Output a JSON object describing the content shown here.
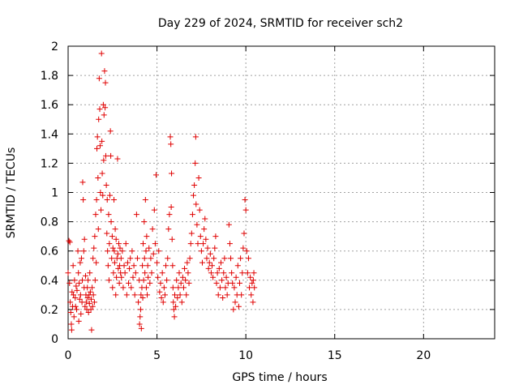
{
  "chart_data": {
    "type": "scatter",
    "title": "Day 229 of 2024, SRMTID for receiver sch2",
    "xlabel": "GPS time / hours",
    "ylabel": "SRMTID / TECUs",
    "xlim": [
      0,
      24
    ],
    "ylim": [
      0,
      2
    ],
    "x_ticks": [
      0,
      5,
      10,
      15,
      20
    ],
    "x_tick_labels": [
      "0",
      "5",
      "10",
      "15",
      "20"
    ],
    "y_ticks": [
      0,
      0.2,
      0.4,
      0.6,
      0.8,
      1,
      1.2,
      1.4,
      1.6,
      1.8,
      2
    ],
    "y_tick_labels": [
      "0",
      "0.2",
      "0.4",
      "0.6",
      "0.8",
      "1",
      "1.2",
      "1.4",
      "1.6",
      "1.8",
      "2"
    ],
    "grid": true,
    "marker": "+",
    "color": "#e00000",
    "series": [
      {
        "name": "SRMTID",
        "points": [
          [
            0.0,
            0.45
          ],
          [
            0.05,
            0.67
          ],
          [
            0.08,
            0.38
          ],
          [
            0.1,
            0.66
          ],
          [
            0.12,
            0.25
          ],
          [
            0.15,
            0.18
          ],
          [
            0.18,
            0.1
          ],
          [
            0.2,
            0.06
          ],
          [
            0.22,
            0.32
          ],
          [
            0.25,
            0.22
          ],
          [
            0.28,
            0.5
          ],
          [
            0.3,
            0.3
          ],
          [
            0.33,
            0.15
          ],
          [
            0.36,
            0.4
          ],
          [
            0.4,
            0.28
          ],
          [
            0.42,
            0.22
          ],
          [
            0.45,
            0.36
          ],
          [
            0.48,
            0.2
          ],
          [
            0.5,
            0.33
          ],
          [
            0.55,
            0.6
          ],
          [
            0.58,
            0.45
          ],
          [
            0.6,
            0.12
          ],
          [
            0.62,
            0.38
          ],
          [
            0.65,
            0.27
          ],
          [
            0.68,
            0.52
          ],
          [
            0.7,
            0.3
          ],
          [
            0.72,
            0.17
          ],
          [
            0.75,
            0.55
          ],
          [
            0.78,
            0.25
          ],
          [
            0.8,
            0.4
          ],
          [
            0.82,
            1.07
          ],
          [
            0.85,
            0.95
          ],
          [
            0.88,
            0.6
          ],
          [
            0.9,
            0.35
          ],
          [
            0.92,
            0.68
          ],
          [
            0.95,
            0.22
          ],
          [
            0.98,
            0.43
          ],
          [
            1.0,
            0.3
          ],
          [
            1.02,
            0.25
          ],
          [
            1.05,
            0.2
          ],
          [
            1.08,
            0.35
          ],
          [
            1.1,
            0.28
          ],
          [
            1.12,
            0.4
          ],
          [
            1.15,
            0.18
          ],
          [
            1.18,
            0.3
          ],
          [
            1.2,
            0.24
          ],
          [
            1.22,
            0.45
          ],
          [
            1.25,
            0.32
          ],
          [
            1.28,
            0.2
          ],
          [
            1.3,
            0.27
          ],
          [
            1.32,
            0.06
          ],
          [
            1.35,
            0.35
          ],
          [
            1.38,
            0.22
          ],
          [
            1.4,
            0.55
          ],
          [
            1.42,
            0.3
          ],
          [
            1.45,
            0.62
          ],
          [
            1.48,
            0.25
          ],
          [
            1.5,
            0.7
          ],
          [
            1.52,
            0.4
          ],
          [
            1.55,
            0.85
          ],
          [
            1.58,
            0.52
          ],
          [
            1.6,
            0.95
          ],
          [
            1.62,
            1.3
          ],
          [
            1.65,
            1.38
          ],
          [
            1.68,
            1.1
          ],
          [
            1.7,
            0.75
          ],
          [
            1.72,
            1.5
          ],
          [
            1.75,
            1.78
          ],
          [
            1.78,
            1.57
          ],
          [
            1.8,
            1.32
          ],
          [
            1.82,
            1.0
          ],
          [
            1.85,
            0.88
          ],
          [
            1.88,
            1.95
          ],
          [
            1.9,
            1.35
          ],
          [
            1.92,
            1.13
          ],
          [
            1.95,
            0.98
          ],
          [
            1.98,
            1.6
          ],
          [
            2.0,
            1.22
          ],
          [
            2.02,
            1.53
          ],
          [
            2.05,
            1.83
          ],
          [
            2.08,
            1.58
          ],
          [
            2.1,
            1.75
          ],
          [
            2.12,
            1.25
          ],
          [
            2.15,
            1.05
          ],
          [
            2.18,
            0.72
          ],
          [
            2.2,
            0.95
          ],
          [
            2.22,
            0.6
          ],
          [
            2.25,
            0.5
          ],
          [
            2.28,
            0.85
          ],
          [
            2.3,
            0.4
          ],
          [
            2.32,
            0.65
          ],
          [
            2.35,
            0.98
          ],
          [
            2.38,
            1.42
          ],
          [
            2.4,
            1.25
          ],
          [
            2.42,
            0.8
          ],
          [
            2.45,
            0.55
          ],
          [
            2.48,
            0.7
          ],
          [
            2.5,
            0.35
          ],
          [
            2.52,
            0.62
          ],
          [
            2.55,
            0.45
          ],
          [
            2.58,
            0.95
          ],
          [
            2.6,
            0.6
          ],
          [
            2.62,
            0.52
          ],
          [
            2.65,
            0.75
          ],
          [
            2.68,
            0.3
          ],
          [
            2.7,
            0.68
          ],
          [
            2.72,
            0.42
          ],
          [
            2.75,
            0.55
          ],
          [
            2.78,
            1.23
          ],
          [
            2.8,
            0.58
          ],
          [
            2.82,
            0.48
          ],
          [
            2.85,
            0.65
          ],
          [
            2.88,
            0.38
          ],
          [
            2.9,
            0.5
          ],
          [
            2.92,
            0.62
          ],
          [
            2.95,
            0.45
          ],
          [
            2.98,
            0.55
          ],
          [
            3.0,
            0.42
          ],
          [
            3.05,
            0.6
          ],
          [
            3.1,
            0.35
          ],
          [
            3.15,
            0.5
          ],
          [
            3.2,
            0.45
          ],
          [
            3.25,
            0.65
          ],
          [
            3.3,
            0.3
          ],
          [
            3.35,
            0.52
          ],
          [
            3.4,
            0.38
          ],
          [
            3.45,
            0.48
          ],
          [
            3.5,
            0.55
          ],
          [
            3.55,
            0.35
          ],
          [
            3.6,
            0.6
          ],
          [
            3.65,
            0.42
          ],
          [
            3.7,
            0.5
          ],
          [
            3.75,
            0.3
          ],
          [
            3.8,
            0.45
          ],
          [
            3.85,
            0.85
          ],
          [
            3.9,
            0.55
          ],
          [
            3.95,
            0.25
          ],
          [
            4.0,
            0.4
          ],
          [
            4.02,
            0.1
          ],
          [
            4.05,
            0.15
          ],
          [
            4.08,
            0.2
          ],
          [
            4.1,
            0.3
          ],
          [
            4.12,
            0.07
          ],
          [
            4.15,
            0.35
          ],
          [
            4.18,
            0.5
          ],
          [
            4.2,
            0.28
          ],
          [
            4.22,
            0.65
          ],
          [
            4.25,
            0.4
          ],
          [
            4.28,
            0.8
          ],
          [
            4.3,
            0.55
          ],
          [
            4.32,
            0.45
          ],
          [
            4.35,
            0.95
          ],
          [
            4.38,
            0.6
          ],
          [
            4.4,
            0.35
          ],
          [
            4.42,
            0.7
          ],
          [
            4.45,
            0.3
          ],
          [
            4.48,
            0.5
          ],
          [
            4.5,
            0.42
          ],
          [
            4.55,
            0.62
          ],
          [
            4.6,
            0.38
          ],
          [
            4.65,
            0.55
          ],
          [
            4.7,
            0.45
          ],
          [
            4.75,
            0.75
          ],
          [
            4.8,
            0.58
          ],
          [
            4.85,
            0.88
          ],
          [
            4.9,
            0.65
          ],
          [
            4.95,
            1.12
          ],
          [
            5.0,
            0.52
          ],
          [
            5.05,
            0.42
          ],
          [
            5.1,
            0.6
          ],
          [
            5.15,
            0.32
          ],
          [
            5.2,
            0.38
          ],
          [
            5.25,
            0.28
          ],
          [
            5.3,
            0.45
          ],
          [
            5.35,
            0.25
          ],
          [
            5.4,
            0.35
          ],
          [
            5.45,
            0.3
          ],
          [
            5.5,
            0.5
          ],
          [
            5.55,
            0.4
          ],
          [
            5.6,
            0.55
          ],
          [
            5.65,
            0.75
          ],
          [
            5.7,
            0.85
          ],
          [
            5.75,
            1.38
          ],
          [
            5.78,
            1.33
          ],
          [
            5.8,
            0.9
          ],
          [
            5.82,
            1.13
          ],
          [
            5.85,
            0.68
          ],
          [
            5.88,
            0.5
          ],
          [
            5.9,
            0.35
          ],
          [
            5.92,
            0.25
          ],
          [
            5.95,
            0.2
          ],
          [
            5.98,
            0.15
          ],
          [
            6.0,
            0.3
          ],
          [
            6.05,
            0.22
          ],
          [
            6.1,
            0.4
          ],
          [
            6.15,
            0.28
          ],
          [
            6.2,
            0.35
          ],
          [
            6.25,
            0.45
          ],
          [
            6.3,
            0.3
          ],
          [
            6.35,
            0.38
          ],
          [
            6.4,
            0.25
          ],
          [
            6.45,
            0.42
          ],
          [
            6.5,
            0.35
          ],
          [
            6.55,
            0.48
          ],
          [
            6.6,
            0.4
          ],
          [
            6.65,
            0.3
          ],
          [
            6.7,
            0.52
          ],
          [
            6.75,
            0.45
          ],
          [
            6.8,
            0.38
          ],
          [
            6.85,
            0.55
          ],
          [
            6.9,
            0.65
          ],
          [
            6.95,
            0.72
          ],
          [
            7.0,
            0.85
          ],
          [
            7.05,
            0.98
          ],
          [
            7.1,
            1.05
          ],
          [
            7.15,
            1.2
          ],
          [
            7.18,
            1.38
          ],
          [
            7.2,
            0.92
          ],
          [
            7.25,
            0.78
          ],
          [
            7.3,
            0.65
          ],
          [
            7.35,
            1.1
          ],
          [
            7.4,
            0.88
          ],
          [
            7.45,
            0.7
          ],
          [
            7.5,
            0.6
          ],
          [
            7.55,
            0.52
          ],
          [
            7.6,
            0.65
          ],
          [
            7.65,
            0.75
          ],
          [
            7.7,
            0.82
          ],
          [
            7.75,
            0.68
          ],
          [
            7.8,
            0.55
          ],
          [
            7.85,
            0.62
          ],
          [
            7.9,
            0.48
          ],
          [
            7.95,
            0.52
          ],
          [
            8.0,
            0.58
          ],
          [
            8.05,
            0.45
          ],
          [
            8.1,
            0.5
          ],
          [
            8.15,
            0.42
          ],
          [
            8.2,
            0.55
          ],
          [
            8.25,
            0.62
          ],
          [
            8.3,
            0.7
          ],
          [
            8.35,
            0.38
          ],
          [
            8.4,
            0.45
          ],
          [
            8.45,
            0.3
          ],
          [
            8.5,
            0.48
          ],
          [
            8.55,
            0.35
          ],
          [
            8.6,
            0.52
          ],
          [
            8.65,
            0.4
          ],
          [
            8.7,
            0.28
          ],
          [
            8.75,
            0.45
          ],
          [
            8.8,
            0.55
          ],
          [
            8.85,
            0.35
          ],
          [
            8.9,
            0.42
          ],
          [
            8.95,
            0.3
          ],
          [
            9.0,
            0.38
          ],
          [
            9.05,
            0.78
          ],
          [
            9.1,
            0.65
          ],
          [
            9.15,
            0.55
          ],
          [
            9.2,
            0.45
          ],
          [
            9.25,
            0.38
          ],
          [
            9.3,
            0.2
          ],
          [
            9.35,
            0.35
          ],
          [
            9.4,
            0.25
          ],
          [
            9.45,
            0.42
          ],
          [
            9.5,
            0.3
          ],
          [
            9.55,
            0.5
          ],
          [
            9.6,
            0.22
          ],
          [
            9.65,
            0.38
          ],
          [
            9.7,
            0.55
          ],
          [
            9.75,
            0.3
          ],
          [
            9.8,
            0.45
          ],
          [
            9.85,
            0.62
          ],
          [
            9.9,
            0.72
          ],
          [
            9.95,
            0.95
          ],
          [
            10.0,
            0.88
          ],
          [
            10.05,
            0.6
          ],
          [
            10.1,
            0.45
          ],
          [
            10.15,
            0.55
          ],
          [
            10.2,
            0.35
          ],
          [
            10.25,
            0.42
          ],
          [
            10.3,
            0.3
          ],
          [
            10.35,
            0.38
          ],
          [
            10.4,
            0.25
          ],
          [
            10.42,
            0.4
          ],
          [
            10.45,
            0.45
          ],
          [
            10.48,
            0.35
          ]
        ]
      }
    ]
  }
}
